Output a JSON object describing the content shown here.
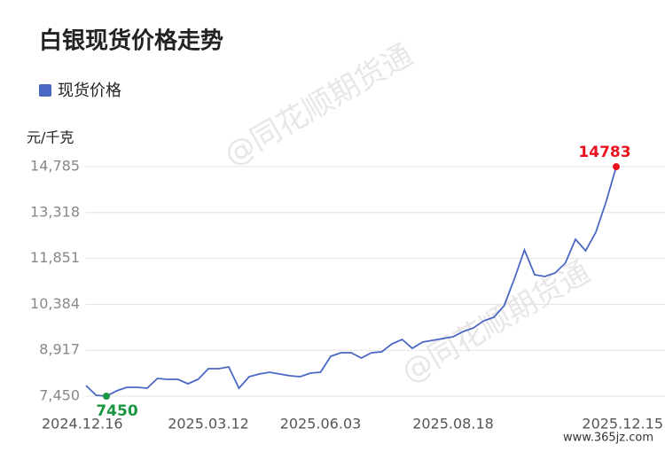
{
  "chart_data": {
    "type": "line",
    "title": "白银现货价格走势",
    "y_unit": "元/千克",
    "categories": [
      "2024.12.16",
      null,
      null,
      null,
      null,
      null,
      null,
      null,
      null,
      null,
      null,
      null,
      "2025.03.12",
      null,
      null,
      null,
      null,
      null,
      null,
      null,
      null,
      null,
      null,
      "2025.06.03",
      null,
      null,
      null,
      null,
      null,
      null,
      null,
      null,
      null,
      null,
      null,
      null,
      "2025.08.18",
      null,
      null,
      null,
      null,
      null,
      null,
      null,
      null,
      null,
      null,
      null,
      null,
      null,
      null,
      null,
      "2025.12.15"
    ],
    "series": [
      {
        "name": "现货价格",
        "color": "#4a67c4",
        "values": [
          7790,
          7478,
          7450,
          7620,
          7733,
          7733,
          7705,
          8017,
          7988,
          7988,
          7847,
          7988,
          8328,
          8328,
          8385,
          7705,
          8073,
          8158,
          8215,
          8158,
          8102,
          8073,
          8187,
          8215,
          8725,
          8838,
          8838,
          8668,
          8838,
          8867,
          9121,
          9263,
          8980,
          9178,
          9235,
          9291,
          9348,
          9518,
          9631,
          9858,
          9971,
          10340,
          11190,
          12124,
          11330,
          11274,
          11387,
          11699,
          12464,
          12096,
          12690,
          13654,
          14783
        ],
        "value_labels": [
          null,
          null,
          "7450",
          null,
          null,
          null,
          null,
          null,
          null,
          null,
          null,
          null,
          null,
          null,
          null,
          null,
          null,
          null,
          null,
          null,
          null,
          null,
          null,
          null,
          null,
          null,
          null,
          null,
          null,
          null,
          null,
          null,
          null,
          null,
          null,
          null,
          null,
          null,
          null,
          null,
          null,
          null,
          null,
          null,
          null,
          null,
          null,
          null,
          null,
          null,
          null,
          null,
          "14783"
        ],
        "label_colors": {
          "low": "#1a9641",
          "high": "#e8111d"
        }
      }
    ],
    "ylim": [
      7450,
      14785
    ],
    "yticks": [
      {
        "value": 7450,
        "label": "7,450"
      },
      {
        "value": 8917,
        "label": "8,917"
      },
      {
        "value": 10384,
        "label": "10,384"
      },
      {
        "value": 11851,
        "label": "11,851"
      },
      {
        "value": 13318,
        "label": "13,318"
      },
      {
        "value": 14785,
        "label": "14,785"
      }
    ],
    "grid": true,
    "watermarks": [
      "@同花顺期货通",
      "@同花顺期货通",
      "www.365jz.com"
    ]
  }
}
